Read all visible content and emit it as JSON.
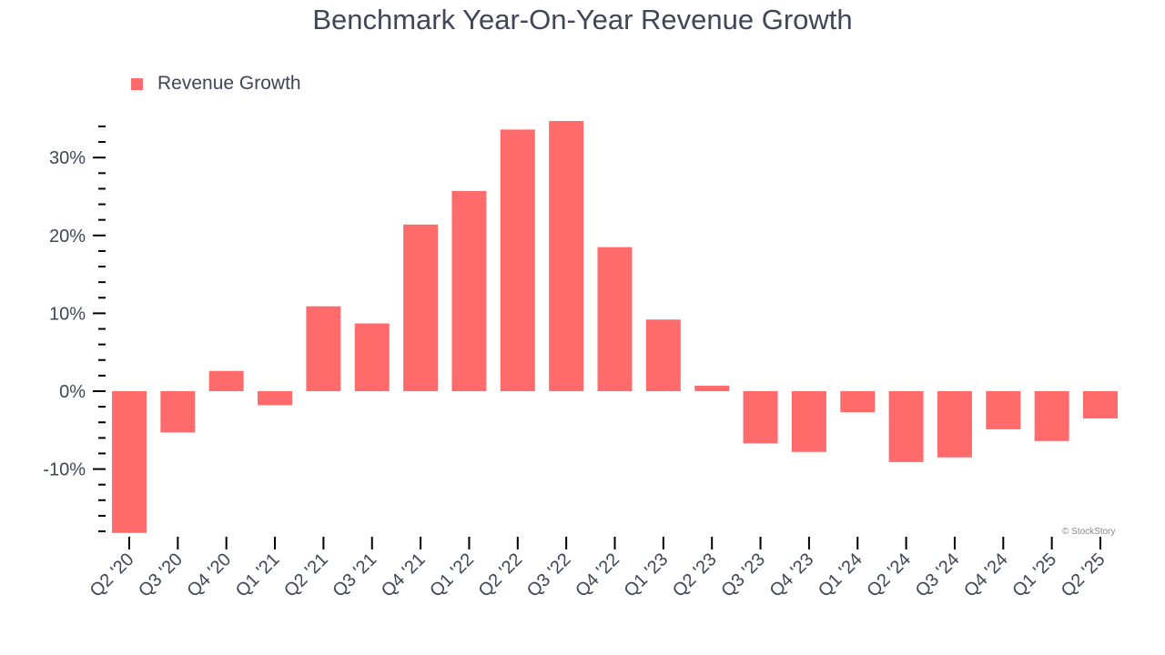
{
  "chart_data": {
    "type": "bar",
    "title": "Benchmark Year-On-Year Revenue Growth",
    "xlabel": "",
    "ylabel": "",
    "categories": [
      "Q2 '20",
      "Q3 '20",
      "Q4 '20",
      "Q1 '21",
      "Q2 '21",
      "Q3 '21",
      "Q4 '21",
      "Q1 '22",
      "Q2 '22",
      "Q3 '22",
      "Q4 '22",
      "Q1 '23",
      "Q2 '23",
      "Q3 '23",
      "Q4 '23",
      "Q1 '24",
      "Q2 '24",
      "Q3 '24",
      "Q4 '24",
      "Q1 '25",
      "Q2 '25"
    ],
    "series": [
      {
        "name": "Revenue Growth",
        "values": [
          -18.2,
          -5.3,
          2.6,
          -1.8,
          10.9,
          8.7,
          21.4,
          25.7,
          33.6,
          34.7,
          18.5,
          9.2,
          0.7,
          -6.7,
          -7.8,
          -2.7,
          -9.1,
          -8.5,
          -4.9,
          -6.4,
          -3.5
        ]
      }
    ],
    "ylim": [
      -18.2,
      35
    ],
    "yticks": [
      -10,
      0,
      10,
      20,
      30
    ],
    "ytick_labels": [
      "-10%",
      "0%",
      "10%",
      "20%",
      "30%"
    ],
    "minor_tick_step": 2,
    "grid": false,
    "legend_position": "top-left",
    "bar_color": "#ff6b6b",
    "watermark": "© StockStory"
  }
}
